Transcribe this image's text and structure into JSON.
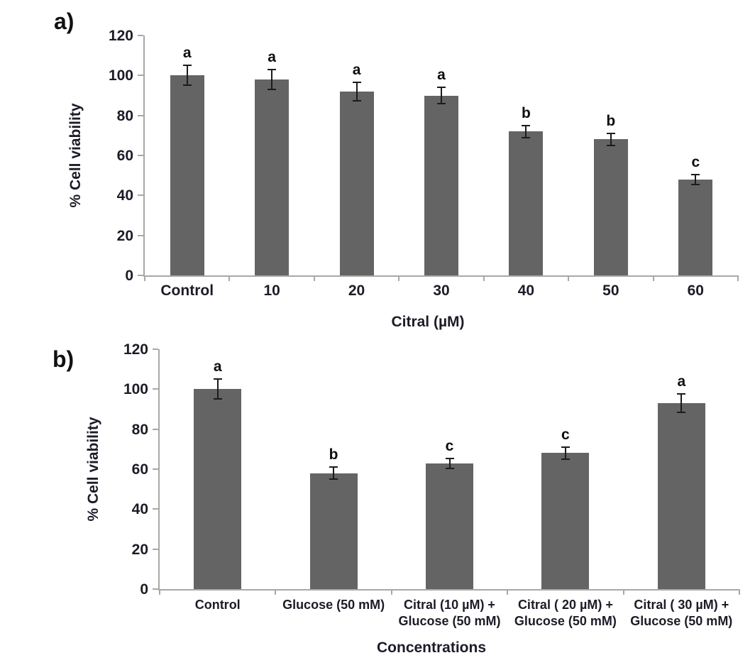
{
  "figure": {
    "background": "#ffffff",
    "bar_color": "#646464",
    "axis_color": "#a8a8a8",
    "text_color": "#1c1c28",
    "error_bar_color": "#1b1b1b"
  },
  "chart_data": [
    {
      "type": "bar",
      "panel_label": "a)",
      "ylabel": "% Cell viability",
      "xlabel": "Citral (µM)",
      "ylim": [
        0,
        120
      ],
      "yticks": [
        0,
        20,
        40,
        60,
        80,
        100,
        120
      ],
      "grid": false,
      "legend": false,
      "categories": [
        "Control",
        "10",
        "20",
        "30",
        "40",
        "50",
        "60"
      ],
      "values": [
        100,
        98,
        92,
        90,
        72,
        68,
        48
      ],
      "errors": [
        5,
        5,
        4.5,
        4,
        3,
        3,
        2.5
      ],
      "sig_letters": [
        "a",
        "a",
        "a",
        "a",
        "b",
        "b",
        "c"
      ]
    },
    {
      "type": "bar",
      "panel_label": "b)",
      "ylabel": "% Cell viability",
      "xlabel": "Concentrations",
      "ylim": [
        0,
        120
      ],
      "yticks": [
        0,
        20,
        40,
        60,
        80,
        100,
        120
      ],
      "grid": false,
      "legend": false,
      "categories": [
        "Control",
        "Glucose (50 mM)",
        "Citral (10 µM) +\nGlucose (50 mM)",
        "Citral ( 20 µM) +\nGlucose (50 mM)",
        "Citral ( 30 µM) +\nGlucose (50 mM)"
      ],
      "values": [
        100,
        58,
        63,
        68,
        93
      ],
      "errors": [
        5,
        3,
        2.5,
        3,
        4.5
      ],
      "sig_letters": [
        "a",
        "b",
        "c",
        "c",
        "a"
      ]
    }
  ]
}
